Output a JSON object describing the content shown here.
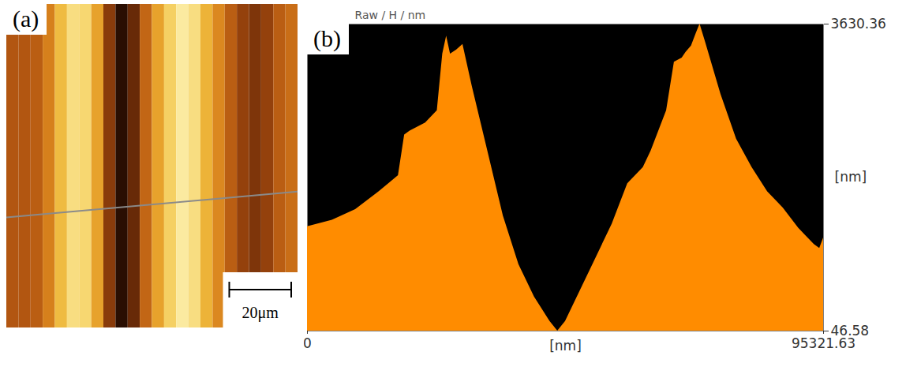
{
  "chart_data": [
    {
      "type": "image",
      "label": "(a)",
      "tick_labels": false,
      "xlim": [
        0,
        94
      ],
      "bins": [
        0,
        3.92,
        7.83,
        11.75,
        15.67,
        19.58,
        23.5,
        27.42,
        31.33,
        35.25,
        39.17,
        43.08,
        47,
        50.92,
        54.83,
        58.75,
        62.67,
        66.58,
        70.5,
        74.42,
        78.33,
        82.25,
        86.17,
        90.08,
        94
      ],
      "values": [
        1600,
        1600,
        1700,
        2100,
        2800,
        3300,
        3200,
        2500,
        1200,
        300,
        900,
        1800,
        2500,
        3100,
        3500,
        3300,
        2700,
        2200,
        1700,
        1300,
        1100,
        1300,
        1700,
        1900
      ],
      "scale_bar": {
        "length": 20,
        "label": "20μm"
      }
    },
    {
      "type": "area",
      "label": "(b)",
      "title": "Raw / H / nm",
      "x_label": "[nm]",
      "y_label": "[nm]",
      "color": "#ff8c00",
      "x": [
        0,
        4594,
        8901,
        13207,
        15361,
        16797,
        17945,
        18950,
        21821,
        23974,
        24979,
        25697,
        26415,
        27563,
        28712,
        30434,
        33306,
        36177,
        39048,
        41920,
        44791,
        46226,
        47662,
        50533,
        53404,
        56276,
        59147,
        62018,
        63454,
        66325,
        67761,
        69196,
        69914,
        70919,
        71778,
        72497,
        73502,
        76373,
        79245,
        82116,
        84987,
        87858,
        90730,
        93601,
        94606,
        95321.63
      ],
      "values": [
        1266,
        1342,
        1465,
        1673,
        1786,
        1862,
        2335,
        2382,
        2477,
        2619,
        3281,
        3489,
        3281,
        3328,
        3394,
        2902,
        2146,
        1389,
        822,
        444,
        160,
        46.58,
        160,
        538,
        916,
        1295,
        1768,
        1957,
        2146,
        2619,
        3186,
        3234,
        3300,
        3375,
        3517,
        3630.36,
        3422,
        2808,
        2288,
        1957,
        1673,
        1484,
        1247,
        1058,
        1011,
        1134
      ],
      "xlim": [
        0,
        95321.63
      ],
      "xticks": [
        0,
        95321.63
      ],
      "ylim": [
        46.58,
        3630.36
      ],
      "yticks": [
        46.58,
        3630.36
      ]
    }
  ]
}
